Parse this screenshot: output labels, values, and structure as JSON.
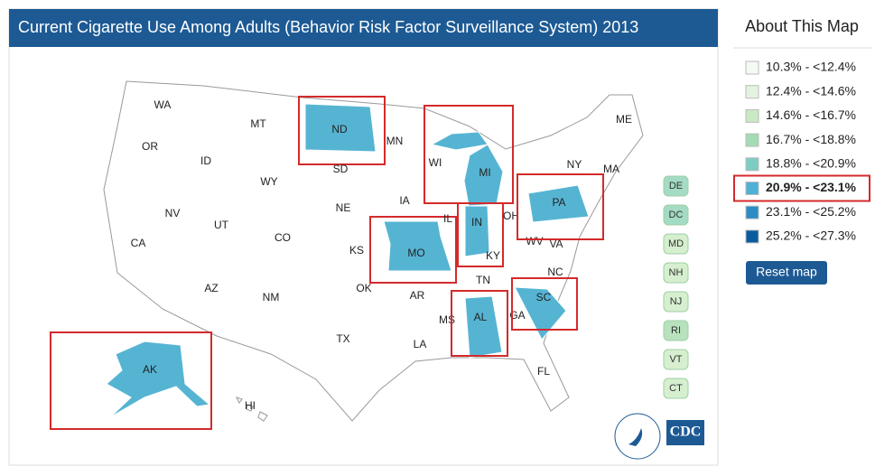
{
  "header": {
    "title": "Current Cigarette Use Among Adults (Behavior Risk Factor Surveillance System) 2013"
  },
  "sidebar": {
    "title": "About This Map",
    "legend": [
      {
        "label": "10.3% - <12.4%",
        "color": "#f5faf3",
        "selected": false
      },
      {
        "label": "12.4% - <14.6%",
        "color": "#e4f3e0",
        "selected": false
      },
      {
        "label": "14.6% - <16.7%",
        "color": "#c9e9c2",
        "selected": false
      },
      {
        "label": "16.7% - <18.8%",
        "color": "#a3dbb4",
        "selected": false
      },
      {
        "label": "18.8% - <20.9%",
        "color": "#7ccdc1",
        "selected": false
      },
      {
        "label": "20.9% - <23.1%",
        "color": "#4fb1d6",
        "selected": true
      },
      {
        "label": "23.1% - <25.2%",
        "color": "#2b8cc4",
        "selected": false
      },
      {
        "label": "25.2% - <27.3%",
        "color": "#0a5aa0",
        "selected": false
      }
    ],
    "reset_button": "Reset map"
  },
  "map": {
    "highlight_color": "#56b4d3",
    "states": [
      {
        "label": "WA",
        "highlighted": false
      },
      {
        "label": "OR",
        "highlighted": false
      },
      {
        "label": "CA",
        "highlighted": false
      },
      {
        "label": "NV",
        "highlighted": false
      },
      {
        "label": "ID",
        "highlighted": false
      },
      {
        "label": "MT",
        "highlighted": false
      },
      {
        "label": "WY",
        "highlighted": false
      },
      {
        "label": "UT",
        "highlighted": false
      },
      {
        "label": "AZ",
        "highlighted": false
      },
      {
        "label": "CO",
        "highlighted": false
      },
      {
        "label": "NM",
        "highlighted": false
      },
      {
        "label": "ND",
        "highlighted": true
      },
      {
        "label": "SD",
        "highlighted": false
      },
      {
        "label": "NE",
        "highlighted": false
      },
      {
        "label": "KS",
        "highlighted": false
      },
      {
        "label": "OK",
        "highlighted": false
      },
      {
        "label": "TX",
        "highlighted": false
      },
      {
        "label": "MN",
        "highlighted": false
      },
      {
        "label": "IA",
        "highlighted": false
      },
      {
        "label": "MO",
        "highlighted": true
      },
      {
        "label": "AR",
        "highlighted": false
      },
      {
        "label": "LA",
        "highlighted": false
      },
      {
        "label": "WI",
        "highlighted": false
      },
      {
        "label": "IL",
        "highlighted": false
      },
      {
        "label": "MI",
        "highlighted": true
      },
      {
        "label": "IN",
        "highlighted": true
      },
      {
        "label": "OH",
        "highlighted": false
      },
      {
        "label": "KY",
        "highlighted": false
      },
      {
        "label": "TN",
        "highlighted": false
      },
      {
        "label": "MS",
        "highlighted": false
      },
      {
        "label": "AL",
        "highlighted": true
      },
      {
        "label": "GA",
        "highlighted": false
      },
      {
        "label": "FL",
        "highlighted": false
      },
      {
        "label": "SC",
        "highlighted": true
      },
      {
        "label": "NC",
        "highlighted": false
      },
      {
        "label": "VA",
        "highlighted": false
      },
      {
        "label": "WV",
        "highlighted": false
      },
      {
        "label": "PA",
        "highlighted": true
      },
      {
        "label": "NY",
        "highlighted": false
      },
      {
        "label": "ME",
        "highlighted": false
      },
      {
        "label": "MA",
        "highlighted": false
      },
      {
        "label": "AK",
        "highlighted": true
      },
      {
        "label": "HI",
        "highlighted": false
      }
    ],
    "small_states": [
      {
        "label": "DE",
        "color": "#a3dbc4"
      },
      {
        "label": "DC",
        "color": "#a3dbc4"
      },
      {
        "label": "MD",
        "color": "#d6efcf"
      },
      {
        "label": "NH",
        "color": "#d6efcf"
      },
      {
        "label": "NJ",
        "color": "#d6efcf"
      },
      {
        "label": "RI",
        "color": "#b7e2bd"
      },
      {
        "label": "VT",
        "color": "#d6efcf"
      },
      {
        "label": "CT",
        "color": "#d6efcf"
      }
    ],
    "logo": "CDC"
  }
}
